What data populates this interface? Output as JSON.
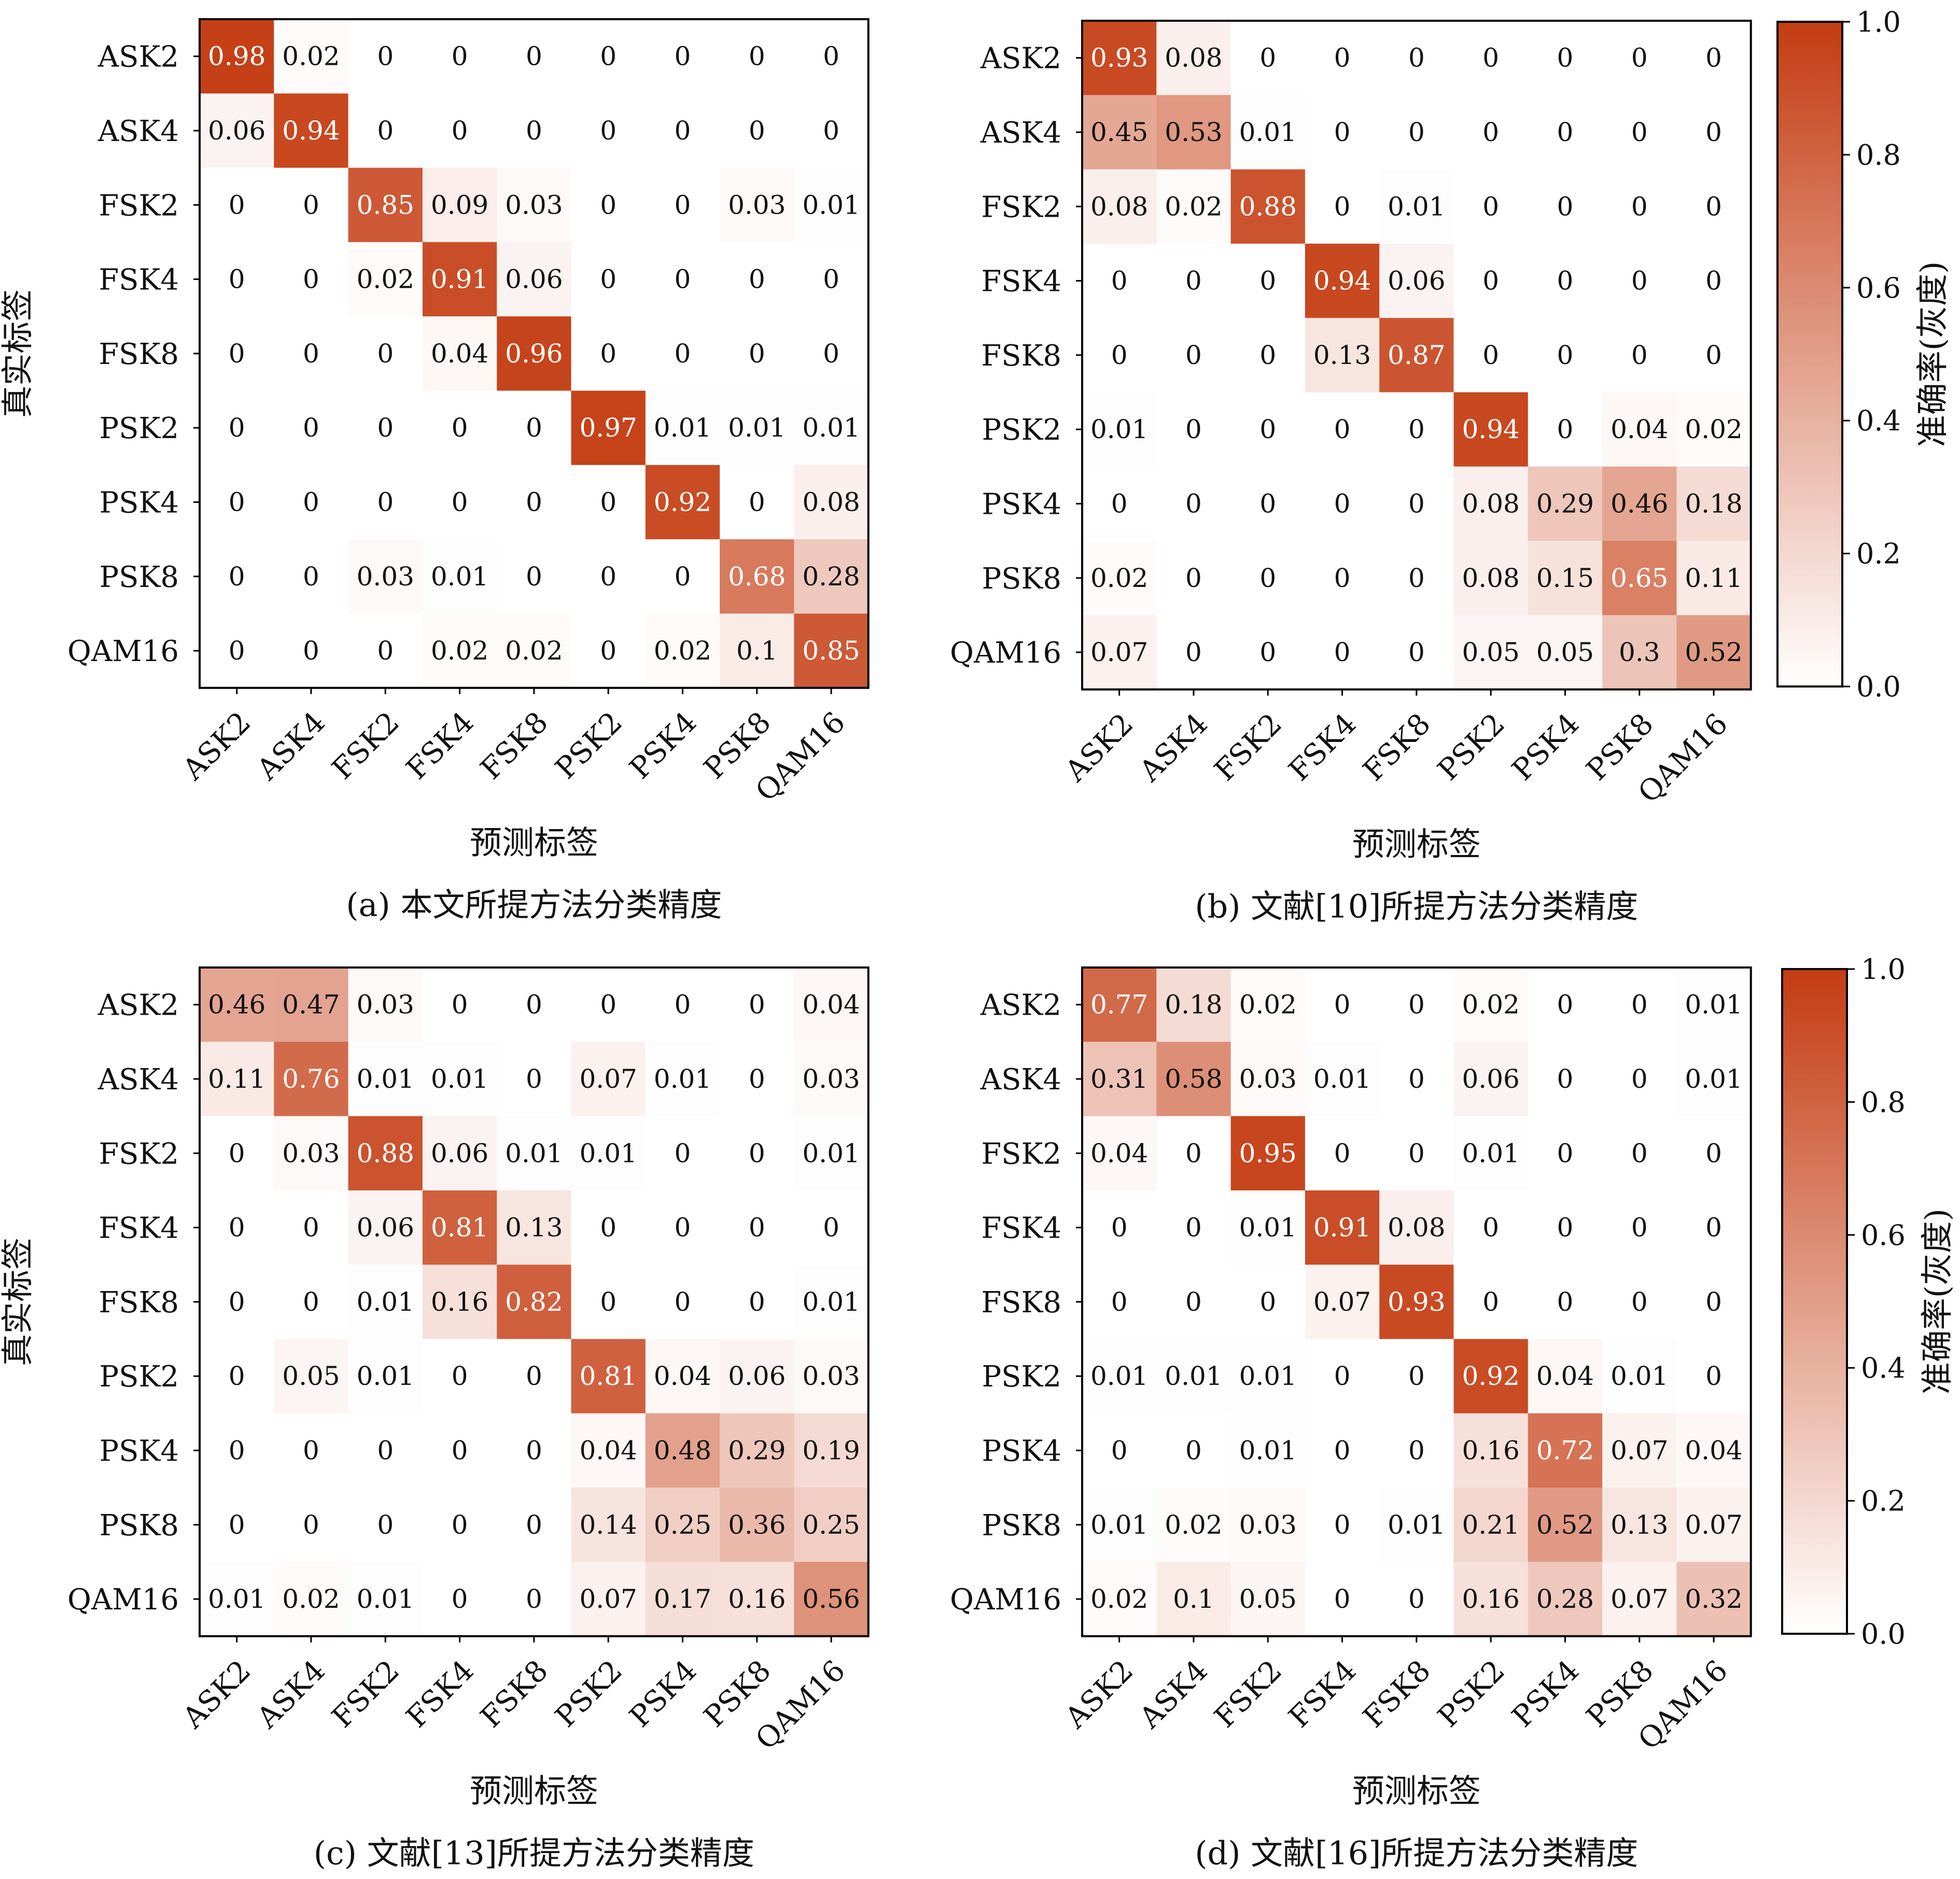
{
  "colors": {
    "low": "#ffffff",
    "high": "#c43c12"
  },
  "labels": [
    "ASK2",
    "ASK4",
    "FSK2",
    "FSK4",
    "FSK8",
    "PSK2",
    "PSK4",
    "PSK8",
    "QAM16"
  ],
  "axis": {
    "xlabel": "预测标签",
    "ylabel": "真实标签",
    "colorbar_label": "准确率(灰度)",
    "colorbar_ticks": [
      "0.0",
      "0.2",
      "0.4",
      "0.6",
      "0.8",
      "1.0"
    ]
  },
  "chart_data": [
    {
      "type": "heatmap",
      "caption": "(a) 本文所提方法分类精度",
      "matrix": [
        [
          "0.98",
          "0.02",
          "0",
          "0",
          "0",
          "0",
          "0",
          "0",
          "0"
        ],
        [
          "0.06",
          "0.94",
          "0",
          "0",
          "0",
          "0",
          "0",
          "0",
          "0"
        ],
        [
          "0",
          "0",
          "0.85",
          "0.09",
          "0.03",
          "0",
          "0",
          "0.03",
          "0.01"
        ],
        [
          "0",
          "0",
          "0.02",
          "0.91",
          "0.06",
          "0",
          "0",
          "0",
          "0"
        ],
        [
          "0",
          "0",
          "0",
          "0.04",
          "0.96",
          "0",
          "0",
          "0",
          "0"
        ],
        [
          "0",
          "0",
          "0",
          "0",
          "0",
          "0.97",
          "0.01",
          "0.01",
          "0.01"
        ],
        [
          "0",
          "0",
          "0",
          "0",
          "0",
          "0",
          "0.92",
          "0",
          "0.08"
        ],
        [
          "0",
          "0",
          "0.03",
          "0.01",
          "0",
          "0",
          "0",
          "0.68",
          "0.28"
        ],
        [
          "0",
          "0",
          "0",
          "0.02",
          "0.02",
          "0",
          "0.02",
          "0.1",
          "0.85"
        ]
      ],
      "vmin": 0,
      "vmax": 1
    },
    {
      "type": "heatmap",
      "caption": "(b) 文献[10]所提方法分类精度",
      "matrix": [
        [
          "0.93",
          "0.08",
          "0",
          "0",
          "0",
          "0",
          "0",
          "0",
          "0"
        ],
        [
          "0.45",
          "0.53",
          "0.01",
          "0",
          "0",
          "0",
          "0",
          "0",
          "0"
        ],
        [
          "0.08",
          "0.02",
          "0.88",
          "0",
          "0.01",
          "0",
          "0",
          "0",
          "0"
        ],
        [
          "0",
          "0",
          "0",
          "0.94",
          "0.06",
          "0",
          "0",
          "0",
          "0"
        ],
        [
          "0",
          "0",
          "0",
          "0.13",
          "0.87",
          "0",
          "0",
          "0",
          "0"
        ],
        [
          "0.01",
          "0",
          "0",
          "0",
          "0",
          "0.94",
          "0",
          "0.04",
          "0.02"
        ],
        [
          "0",
          "0",
          "0",
          "0",
          "0",
          "0.08",
          "0.29",
          "0.46",
          "0.18"
        ],
        [
          "0.02",
          "0",
          "0",
          "0",
          "0",
          "0.08",
          "0.15",
          "0.65",
          "0.11"
        ],
        [
          "0.07",
          "0",
          "0",
          "0",
          "0",
          "0.05",
          "0.05",
          "0.3",
          "0.52"
        ]
      ],
      "vmin": 0,
      "vmax": 1
    },
    {
      "type": "heatmap",
      "caption": "(c) 文献[13]所提方法分类精度",
      "matrix": [
        [
          "0.46",
          "0.47",
          "0.03",
          "0",
          "0",
          "0",
          "0",
          "0",
          "0.04"
        ],
        [
          "0.11",
          "0.76",
          "0.01",
          "0.01",
          "0",
          "0.07",
          "0.01",
          "0",
          "0.03"
        ],
        [
          "0",
          "0.03",
          "0.88",
          "0.06",
          "0.01",
          "0.01",
          "0",
          "0",
          "0.01"
        ],
        [
          "0",
          "0",
          "0.06",
          "0.81",
          "0.13",
          "0",
          "0",
          "0",
          "0"
        ],
        [
          "0",
          "0",
          "0.01",
          "0.16",
          "0.82",
          "0",
          "0",
          "0",
          "0.01"
        ],
        [
          "0",
          "0.05",
          "0.01",
          "0",
          "0",
          "0.81",
          "0.04",
          "0.06",
          "0.03"
        ],
        [
          "0",
          "0",
          "0",
          "0",
          "0",
          "0.04",
          "0.48",
          "0.29",
          "0.19"
        ],
        [
          "0",
          "0",
          "0",
          "0",
          "0",
          "0.14",
          "0.25",
          "0.36",
          "0.25"
        ],
        [
          "0.01",
          "0.02",
          "0.01",
          "0",
          "0",
          "0.07",
          "0.17",
          "0.16",
          "0.56"
        ]
      ],
      "vmin": 0,
      "vmax": 1
    },
    {
      "type": "heatmap",
      "caption": "(d) 文献[16]所提方法分类精度",
      "matrix": [
        [
          "0.77",
          "0.18",
          "0.02",
          "0",
          "0",
          "0.02",
          "0",
          "0",
          "0.01"
        ],
        [
          "0.31",
          "0.58",
          "0.03",
          "0.01",
          "0",
          "0.06",
          "0",
          "0",
          "0.01"
        ],
        [
          "0.04",
          "0",
          "0.95",
          "0",
          "0",
          "0.01",
          "0",
          "0",
          "0"
        ],
        [
          "0",
          "0",
          "0.01",
          "0.91",
          "0.08",
          "0",
          "0",
          "0",
          "0"
        ],
        [
          "0",
          "0",
          "0",
          "0.07",
          "0.93",
          "0",
          "0",
          "0",
          "0"
        ],
        [
          "0.01",
          "0.01",
          "0.01",
          "0",
          "0",
          "0.92",
          "0.04",
          "0.01",
          "0"
        ],
        [
          "0",
          "0",
          "0.01",
          "0",
          "0",
          "0.16",
          "0.72",
          "0.07",
          "0.04"
        ],
        [
          "0.01",
          "0.02",
          "0.03",
          "0",
          "0.01",
          "0.21",
          "0.52",
          "0.13",
          "0.07"
        ],
        [
          "0.02",
          "0.1",
          "0.05",
          "0",
          "0",
          "0.16",
          "0.28",
          "0.07",
          "0.32"
        ]
      ],
      "vmin": 0,
      "vmax": 1
    }
  ]
}
